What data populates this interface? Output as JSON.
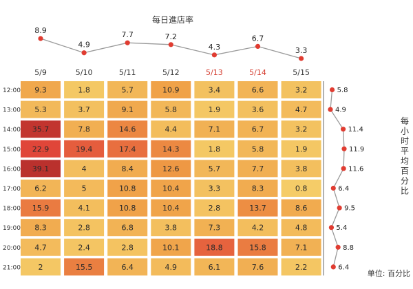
{
  "chart_data": {
    "type": "heatmap",
    "top_title": "每日進店率",
    "right_title": "每小时平均百分比",
    "unit_label": "单位: 百分比",
    "days": [
      "5/9",
      "5/10",
      "5/11",
      "5/12",
      "5/13",
      "5/14",
      "5/15"
    ],
    "weekend_days": [
      "5/13",
      "5/14"
    ],
    "hours": [
      "12:00",
      "13:00",
      "14:00",
      "15:00",
      "16:00",
      "17:00",
      "18:00",
      "19:00",
      "20:00",
      "21:00"
    ],
    "cells": [
      [
        9.3,
        1.8,
        5.7,
        10.9,
        3.4,
        6.6,
        3.2
      ],
      [
        5.3,
        3.7,
        9.1,
        5.8,
        1.9,
        3.6,
        4.7
      ],
      [
        35.7,
        7.8,
        14.6,
        4.4,
        7.1,
        6.7,
        3.2
      ],
      [
        22.9,
        19.4,
        17.4,
        14.3,
        1.8,
        5.8,
        1.9
      ],
      [
        39.1,
        4,
        8.4,
        12.6,
        5.7,
        7.7,
        3.8
      ],
      [
        6.2,
        5,
        10.8,
        10.4,
        3.3,
        8.3,
        0.8
      ],
      [
        15.9,
        4.1,
        10.8,
        10.4,
        2.8,
        13.7,
        8.6
      ],
      [
        8.3,
        2.8,
        6.8,
        3.8,
        7.3,
        4.2,
        4.8
      ],
      [
        4.7,
        2.4,
        2.8,
        10.1,
        18.8,
        15.8,
        7.1
      ],
      [
        2,
        15.5,
        6.4,
        4.9,
        6.1,
        7.6,
        2.2
      ]
    ],
    "daily_rate": [
      8.9,
      4.9,
      7.7,
      7.2,
      4.3,
      6.7,
      3.3
    ],
    "hourly_avg": [
      5.8,
      4.9,
      11.4,
      11.9,
      11.6,
      6.4,
      9.5,
      5.4,
      8.8,
      6.4
    ],
    "colors": {
      "cell_low": "#f5cf6a",
      "cell_mid": "#ef9d45",
      "cell_high": "#e2473a",
      "cell_max": "#b8302c",
      "marker": "#e03c31",
      "connector": "#9a9a9a",
      "weekend_label": "#d43b2e"
    }
  }
}
